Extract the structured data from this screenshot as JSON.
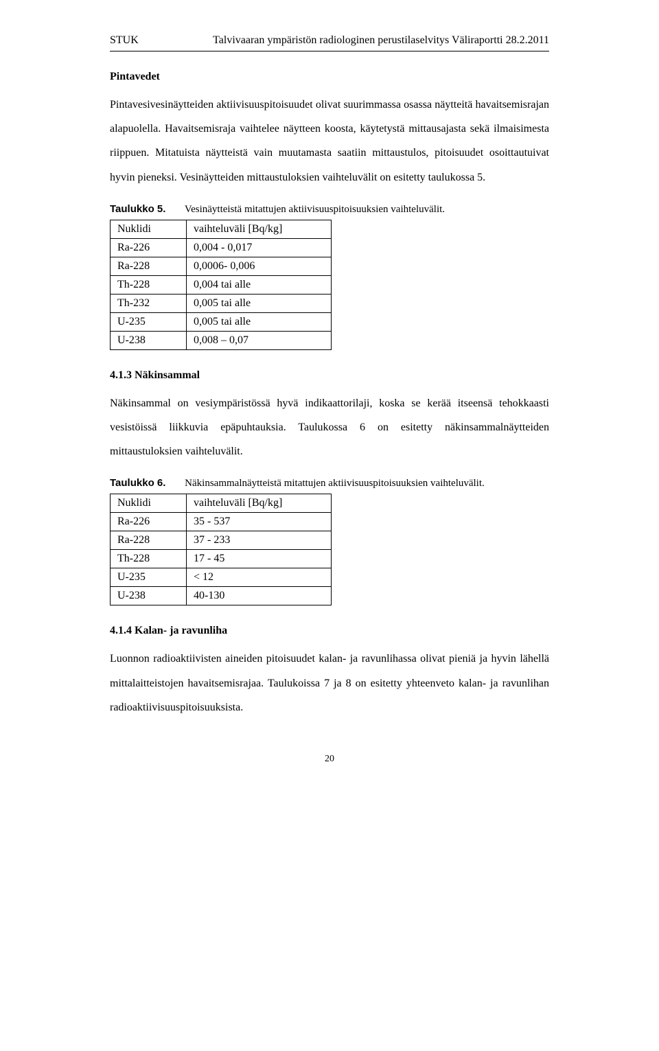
{
  "header": {
    "left": "STUK",
    "right": "Talvivaaran ympäristön radiologinen perustilaselvitys Väliraportti 28.2.2011"
  },
  "section1": {
    "title": "Pintavedet",
    "para": "Pintavesivesinäytteiden aktiivisuuspitoisuudet olivat suurimmassa osassa näytteitä havaitsemisrajan alapuolella. Havaitsemisraja vaihtelee näytteen koosta, käytetystä mittausajasta sekä ilmaisimesta riippuen. Mitatuista näytteistä vain muutamasta saatiin mittaustulos, pitoisuudet osoittautuivat hyvin pieneksi. Vesinäytteiden mittaustuloksien vaihteluvälit on esitetty taulukossa 5."
  },
  "table5": {
    "caption_label": "Taulukko 5.",
    "caption_text": "Vesinäytteistä mitattujen aktiivisuuspitoisuuksien vaihteluvälit.",
    "col_headers": [
      "Nuklidi",
      "vaihteluväli [Bq/kg]"
    ],
    "rows": [
      [
        "Ra-226",
        "0,004 - 0,017"
      ],
      [
        "Ra-228",
        " 0,0006- 0,006"
      ],
      [
        "Th-228",
        " 0,004 tai alle"
      ],
      [
        "Th-232",
        " 0,005 tai alle"
      ],
      [
        "U-235",
        " 0,005 tai alle"
      ],
      [
        "U-238",
        "0,008 – 0,07"
      ]
    ]
  },
  "section2": {
    "heading": "4.1.3 Näkinsammal",
    "para": "Näkinsammal on vesiympäristössä hyvä indikaattorilaji, koska se kerää itseensä tehokkaasti vesistöissä liikkuvia epäpuhtauksia. Taulukossa 6 on esitetty näkinsammalnäytteiden mittaustuloksien vaihteluvälit."
  },
  "table6": {
    "caption_label": "Taulukko 6.",
    "caption_text": "Näkinsammalnäytteistä mitattujen aktiivisuuspitoisuuksien vaihteluvälit.",
    "col_headers": [
      "Nuklidi",
      "vaihteluväli [Bq/kg]"
    ],
    "rows": [
      [
        "Ra-226",
        "35 - 537"
      ],
      [
        "Ra-228",
        "37 - 233"
      ],
      [
        "Th-228",
        "17 - 45"
      ],
      [
        "U-235",
        "< 12"
      ],
      [
        "U-238",
        "40-130"
      ]
    ]
  },
  "section3": {
    "heading": "4.1.4 Kalan- ja ravunliha",
    "para": "Luonnon radioaktiivisten aineiden pitoisuudet kalan- ja ravunlihassa olivat pieniä ja hyvin lähellä mittalaitteistojen havaitsemisrajaa. Taulukoissa 7 ja 8 on esitetty yhteenveto kalan- ja ravunlihan radioaktiivisuuspitoisuuksista."
  },
  "page_number": "20"
}
